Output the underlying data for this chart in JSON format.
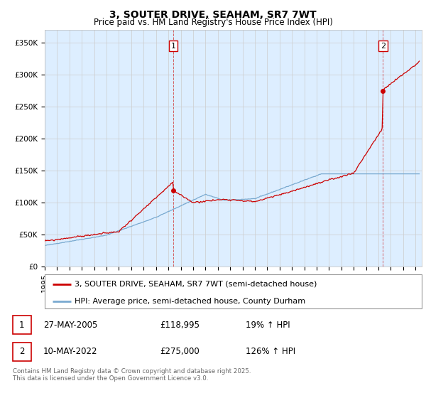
{
  "title": "3, SOUTER DRIVE, SEAHAM, SR7 7WT",
  "subtitle": "Price paid vs. HM Land Registry's House Price Index (HPI)",
  "ylabel_ticks": [
    "£0",
    "£50K",
    "£100K",
    "£150K",
    "£200K",
    "£250K",
    "£300K",
    "£350K"
  ],
  "ytick_values": [
    0,
    50000,
    100000,
    150000,
    200000,
    250000,
    300000,
    350000
  ],
  "ylim": [
    0,
    370000
  ],
  "xlim_start": 1995.0,
  "xlim_end": 2025.5,
  "sale1_date": 2005.4,
  "sale1_price": 118995,
  "sale1_label": "1",
  "sale2_date": 2022.36,
  "sale2_price": 275000,
  "sale2_label": "2",
  "hpi_color": "#7aaad0",
  "price_color": "#cc0000",
  "annotation_box_color": "#cc0000",
  "grid_color": "#cccccc",
  "background_color": "#ffffff",
  "chart_bg_color": "#ddeeff",
  "legend_label_red": "3, SOUTER DRIVE, SEAHAM, SR7 7WT (semi-detached house)",
  "legend_label_blue": "HPI: Average price, semi-detached house, County Durham",
  "table_row1": [
    "1",
    "27-MAY-2005",
    "£118,995",
    "19% ↑ HPI"
  ],
  "table_row2": [
    "2",
    "10-MAY-2022",
    "£275,000",
    "126% ↑ HPI"
  ],
  "footer": "Contains HM Land Registry data © Crown copyright and database right 2025.\nThis data is licensed under the Open Government Licence v3.0.",
  "title_fontsize": 10,
  "subtitle_fontsize": 8.5,
  "tick_fontsize": 7.5,
  "legend_fontsize": 8
}
